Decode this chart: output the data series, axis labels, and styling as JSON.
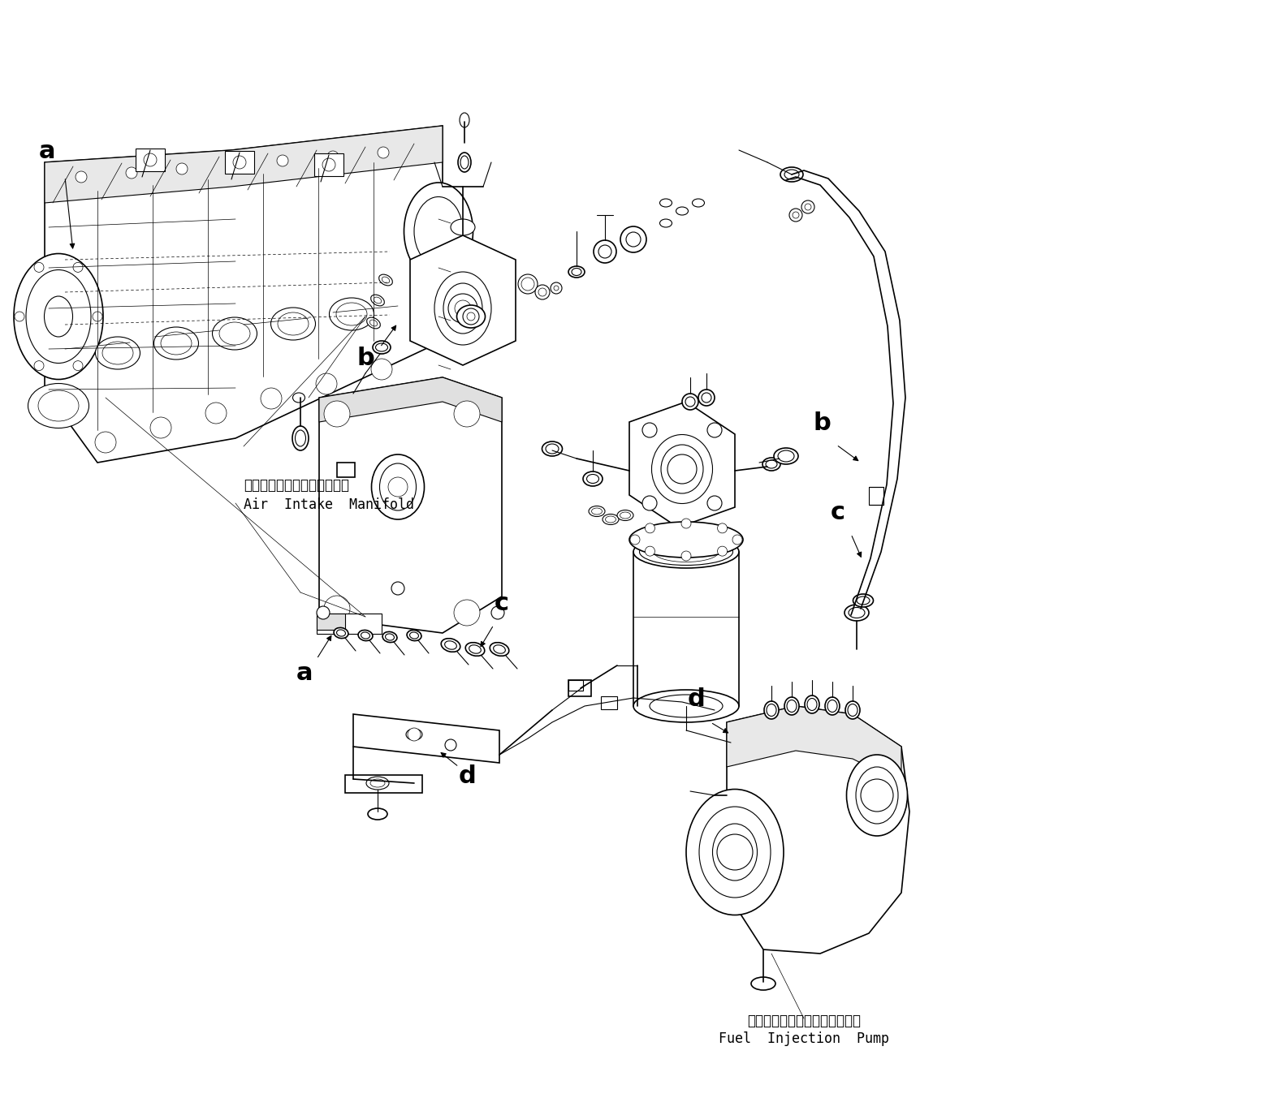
{
  "bg_color": "#ffffff",
  "line_color": "#000000",
  "fig_width": 15.64,
  "fig_height": 13.69,
  "labels": {
    "air_intake_jp": "エアーインテークマニホルド",
    "air_intake_en": "Air  Intake  Manifold",
    "fuel_pump_jp": "フェルインジェクションポンプ",
    "fuel_pump_en": "Fuel  Injection  Pump"
  }
}
